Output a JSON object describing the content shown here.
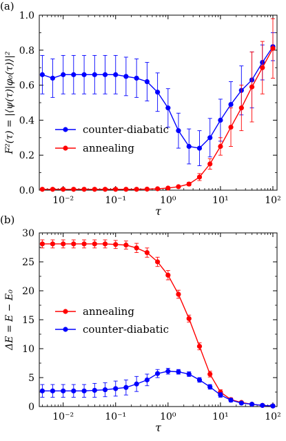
{
  "chart_data": [
    {
      "panel_label": "(a)",
      "type": "line",
      "xscale": "log",
      "xlim": [
        0.0035,
        120
      ],
      "ylim": [
        0,
        1.0
      ],
      "xlabel": "τ",
      "ylabel": "F²(τ) = |⟨ψ(τ)|φ₀(τ)⟩|²",
      "xticks": [
        0.01,
        0.1,
        1,
        10,
        100
      ],
      "xtick_labels": [
        "10⁻²",
        "10⁻¹",
        "10⁰",
        "10¹",
        "10²"
      ],
      "yticks": [
        0,
        0.2,
        0.4,
        0.6,
        0.8,
        1.0
      ],
      "ytick_labels": [
        "0.0",
        "0.2",
        "0.4",
        "0.6",
        "0.8",
        "1.0"
      ],
      "legend_position": "center-left",
      "grid": false,
      "x": [
        0.004,
        0.0063,
        0.01,
        0.0158,
        0.0251,
        0.0398,
        0.0631,
        0.1,
        0.158,
        0.251,
        0.398,
        0.631,
        1.0,
        1.58,
        2.51,
        3.98,
        6.31,
        10,
        15.8,
        25.1,
        39.8,
        63.1,
        100
      ],
      "series": [
        {
          "name": "counter-diabatic",
          "color": "#0000ff",
          "y": [
            0.66,
            0.64,
            0.66,
            0.66,
            0.66,
            0.66,
            0.66,
            0.66,
            0.65,
            0.64,
            0.62,
            0.56,
            0.47,
            0.34,
            0.25,
            0.24,
            0.3,
            0.4,
            0.49,
            0.57,
            0.63,
            0.73,
            0.82
          ],
          "err": [
            0.11,
            0.11,
            0.11,
            0.11,
            0.11,
            0.11,
            0.11,
            0.11,
            0.11,
            0.11,
            0.11,
            0.11,
            0.11,
            0.1,
            0.1,
            0.1,
            0.11,
            0.12,
            0.13,
            0.14,
            0.16,
            0.1,
            0.08
          ]
        },
        {
          "name": "annealing",
          "color": "#ff0000",
          "y": [
            0.005,
            0.005,
            0.005,
            0.005,
            0.005,
            0.005,
            0.005,
            0.005,
            0.005,
            0.005,
            0.006,
            0.008,
            0.012,
            0.02,
            0.035,
            0.075,
            0.15,
            0.25,
            0.36,
            0.47,
            0.59,
            0.7,
            0.81
          ],
          "err": [
            0,
            0,
            0,
            0,
            0,
            0,
            0,
            0,
            0,
            0,
            0,
            0,
            0.003,
            0.005,
            0.01,
            0.02,
            0.03,
            0.05,
            0.11,
            0.13,
            0.2,
            0.15,
            0.17
          ]
        }
      ]
    },
    {
      "panel_label": "(b)",
      "type": "line",
      "xscale": "log",
      "xlim": [
        0.0035,
        120
      ],
      "ylim": [
        0,
        30
      ],
      "xlabel": "τ",
      "ylabel": "ΔE = E − E₀",
      "xticks": [
        0.01,
        0.1,
        1,
        10,
        100
      ],
      "xtick_labels": [
        "10⁻²",
        "10⁻¹",
        "10⁰",
        "10¹",
        "10²"
      ],
      "yticks": [
        0,
        5,
        10,
        15,
        20,
        25,
        30
      ],
      "ytick_labels": [
        "0",
        "5",
        "10",
        "15",
        "20",
        "25",
        "30"
      ],
      "legend_position": "center-left",
      "grid": false,
      "x": [
        0.004,
        0.0063,
        0.01,
        0.0158,
        0.0251,
        0.0398,
        0.0631,
        0.1,
        0.158,
        0.251,
        0.398,
        0.631,
        1.0,
        1.58,
        2.51,
        3.98,
        6.31,
        10,
        15.8,
        25.1,
        39.8,
        63.1,
        100
      ],
      "series": [
        {
          "name": "annealing",
          "color": "#ff0000",
          "y": [
            28.1,
            28.1,
            28.1,
            28.1,
            28.1,
            28.1,
            28.1,
            28.0,
            27.9,
            27.4,
            26.6,
            25.0,
            22.7,
            19.4,
            15.2,
            10.4,
            5.6,
            2.5,
            1.2,
            0.7,
            0.4,
            0.2,
            0.1
          ],
          "err": [
            0.7,
            0.7,
            0.7,
            0.7,
            0.7,
            0.7,
            0.7,
            0.7,
            0.7,
            0.8,
            0.8,
            0.8,
            0.8,
            0.7,
            0.6,
            0.6,
            0.5,
            0.4,
            0.3,
            0.2,
            0.2,
            0.2,
            0.1
          ]
        },
        {
          "name": "counter-diabatic",
          "color": "#0000ff",
          "y": [
            2.7,
            2.7,
            2.7,
            2.7,
            2.7,
            2.8,
            2.9,
            3.1,
            3.3,
            3.9,
            4.6,
            5.7,
            6.1,
            6.0,
            5.6,
            4.6,
            3.4,
            2.0,
            1.1,
            0.6,
            0.4,
            0.2,
            0.1
          ],
          "err": [
            1.1,
            1.1,
            1.1,
            1.1,
            1.1,
            1.2,
            1.2,
            1.3,
            1.3,
            1.3,
            1.0,
            0.7,
            0.5,
            0.4,
            0.4,
            0.4,
            0.4,
            0.4,
            0.3,
            0.2,
            0.2,
            0.1,
            0.1
          ]
        }
      ]
    }
  ]
}
